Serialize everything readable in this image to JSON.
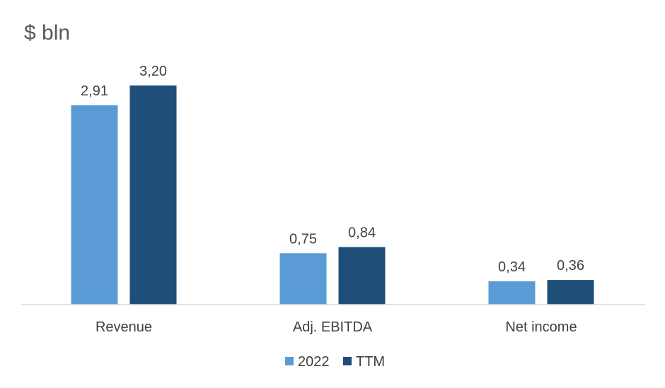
{
  "chart_data": {
    "type": "bar",
    "title": "$ bln",
    "xlabel": "",
    "ylabel": "",
    "categories": [
      "Revenue",
      "Adj. EBITDA",
      "Net income"
    ],
    "series": [
      {
        "name": "2022",
        "values": [
          2.91,
          0.75,
          0.34
        ],
        "labels": [
          "2,91",
          "0,75",
          "0,34"
        ],
        "color": "#5B9BD5"
      },
      {
        "name": "TTM",
        "values": [
          3.2,
          0.84,
          0.36
        ],
        "labels": [
          "3,20",
          "0,84",
          "0,36"
        ],
        "color": "#1F4E79"
      }
    ],
    "ylim": [
      0,
      3.2
    ],
    "grid": false,
    "legend": "bottom"
  }
}
